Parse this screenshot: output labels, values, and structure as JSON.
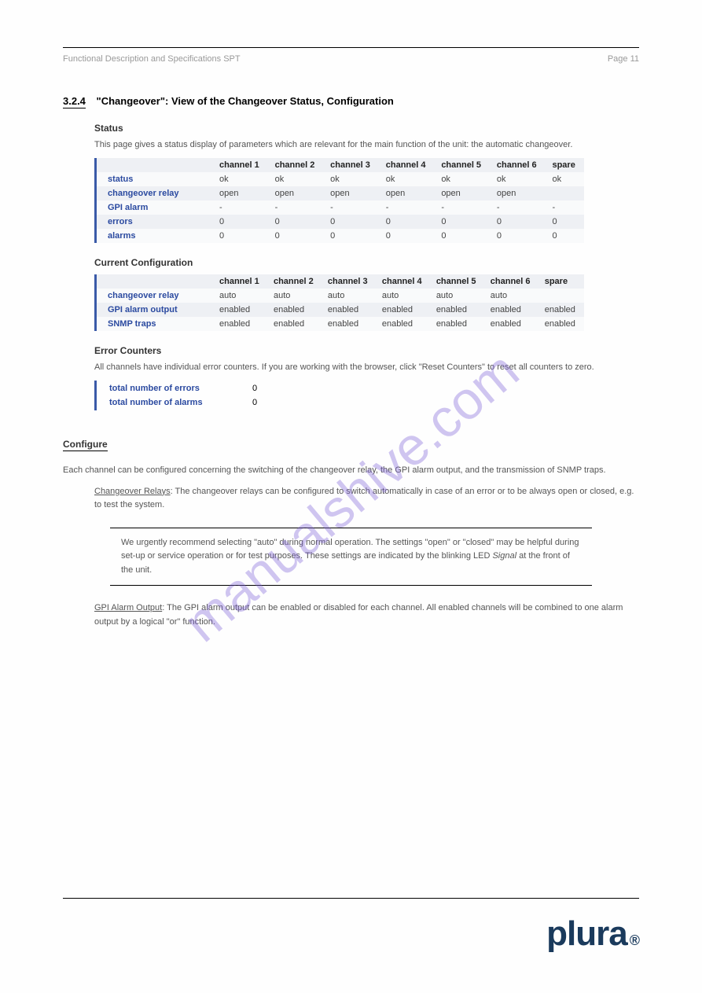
{
  "header": {
    "left": "Functional Description and Specifications SPT",
    "right": "Page 11"
  },
  "section": {
    "num": "3.2.4",
    "title": "\"Changeover\": View of the Changeover Status, Configuration"
  },
  "intro_sub": "Status",
  "intro_txt": "This page gives a status display of parameters which are relevant for the main function of the unit: the automatic changeover.",
  "table1": {
    "row_label_col_width": 150,
    "cols": [
      "channel 1",
      "channel 2",
      "channel 3",
      "channel 4",
      "channel 5",
      "channel 6",
      "spare"
    ],
    "rows": [
      {
        "label": "status",
        "vals": [
          "ok",
          "ok",
          "ok",
          "ok",
          "ok",
          "ok",
          "ok"
        ]
      },
      {
        "label": "changeover relay",
        "vals": [
          "open",
          "open",
          "open",
          "open",
          "open",
          "open",
          ""
        ]
      },
      {
        "label": "GPI alarm",
        "vals": [
          "-",
          "-",
          "-",
          "-",
          "-",
          "-",
          "-"
        ]
      },
      {
        "label": "errors",
        "vals": [
          "0",
          "0",
          "0",
          "0",
          "0",
          "0",
          "0"
        ]
      },
      {
        "label": "alarms",
        "vals": [
          "0",
          "0",
          "0",
          "0",
          "0",
          "0",
          "0"
        ]
      }
    ]
  },
  "sub2": "Current Configuration",
  "table2": {
    "cols": [
      "channel 1",
      "channel 2",
      "channel 3",
      "channel 4",
      "channel 5",
      "channel 6",
      "spare"
    ],
    "rows": [
      {
        "label": "changeover relay",
        "vals": [
          "auto",
          "auto",
          "auto",
          "auto",
          "auto",
          "auto",
          ""
        ]
      },
      {
        "label": "GPI alarm output",
        "vals": [
          "enabled",
          "enabled",
          "enabled",
          "enabled",
          "enabled",
          "enabled",
          "enabled"
        ]
      },
      {
        "label": "SNMP traps",
        "vals": [
          "enabled",
          "enabled",
          "enabled",
          "enabled",
          "enabled",
          "enabled",
          "enabled"
        ]
      }
    ]
  },
  "sub3": "Error Counters",
  "note3": "All channels have individual error counters. If you are working with the browser, click \"Reset Counters\" to reset all counters to zero.",
  "totals": [
    {
      "label": "total number of errors",
      "val": "0"
    },
    {
      "label": "total number of alarms",
      "val": "0"
    }
  ],
  "config_head": "Configure",
  "config_txt": "Each channel can be configured concerning the switching of the changeover relay, the GPI alarm output, and the transmission of SNMP traps.",
  "cfg1_label": "Changeover Relays",
  "cfg1_txt": "The changeover relays can be configured to switch automatically in case of an error or to be always open or closed, e.g. to test the system.",
  "box_txt1": "We urgently recommend selecting \"auto\" during normal operation. The settings \"open\" or \"closed\" may be helpful during set-up or service operation or for test purposes. These settings are indicated by the blinking LED ",
  "box_emph": "Signal",
  "box_txt2": " at the front of the unit.",
  "cfg2_label": "GPI Alarm Output",
  "cfg2_txt": "The GPI alarm output can be enabled or disabled for each channel. All enabled channels will be combined to one alarm output by a logical \"or\" function.",
  "watermark": "manualshive.com",
  "logo": "plura"
}
